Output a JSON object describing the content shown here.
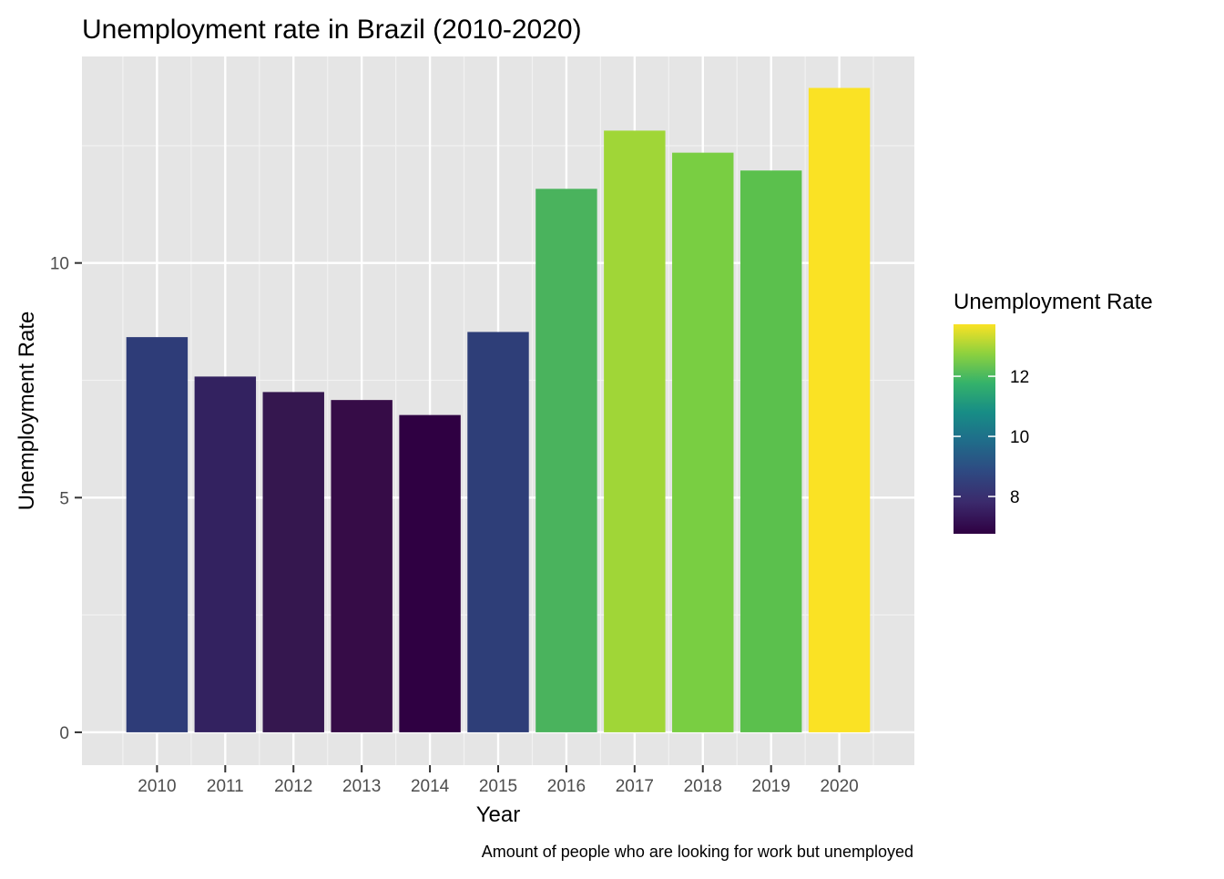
{
  "chart_data": {
    "type": "bar",
    "title": "Unemployment rate in Brazil (2010-2020)",
    "xlabel": "Year",
    "ylabel": "Unemployment Rate",
    "caption": "Amount of people who are looking for work but unemployed",
    "categories": [
      "2010",
      "2011",
      "2012",
      "2013",
      "2014",
      "2015",
      "2016",
      "2017",
      "2018",
      "2019",
      "2020"
    ],
    "values": [
      8.42,
      7.58,
      7.25,
      7.08,
      6.76,
      8.53,
      11.58,
      12.82,
      12.35,
      11.97,
      13.73
    ],
    "ylim": [
      -0.7,
      14.4
    ],
    "y_ticks": [
      0,
      5,
      10
    ],
    "y_tick_labels": [
      "0",
      "5",
      "10"
    ],
    "grid": true,
    "panel_background": "#e5e5e5",
    "legend": {
      "title": "Unemployment Rate",
      "placement": "right",
      "range": [
        6.76,
        13.73
      ],
      "ticks": [
        8,
        10,
        12
      ],
      "tick_labels": [
        "8",
        "10",
        "12"
      ],
      "palette": "viridis"
    },
    "bar_colors": [
      "#2e3c78",
      "#332260",
      "#35174f",
      "#360c47",
      "#2f0042",
      "#2e3e78",
      "#4ab35d",
      "#a0d637",
      "#79ce42",
      "#5bc04d",
      "#fae224"
    ]
  }
}
